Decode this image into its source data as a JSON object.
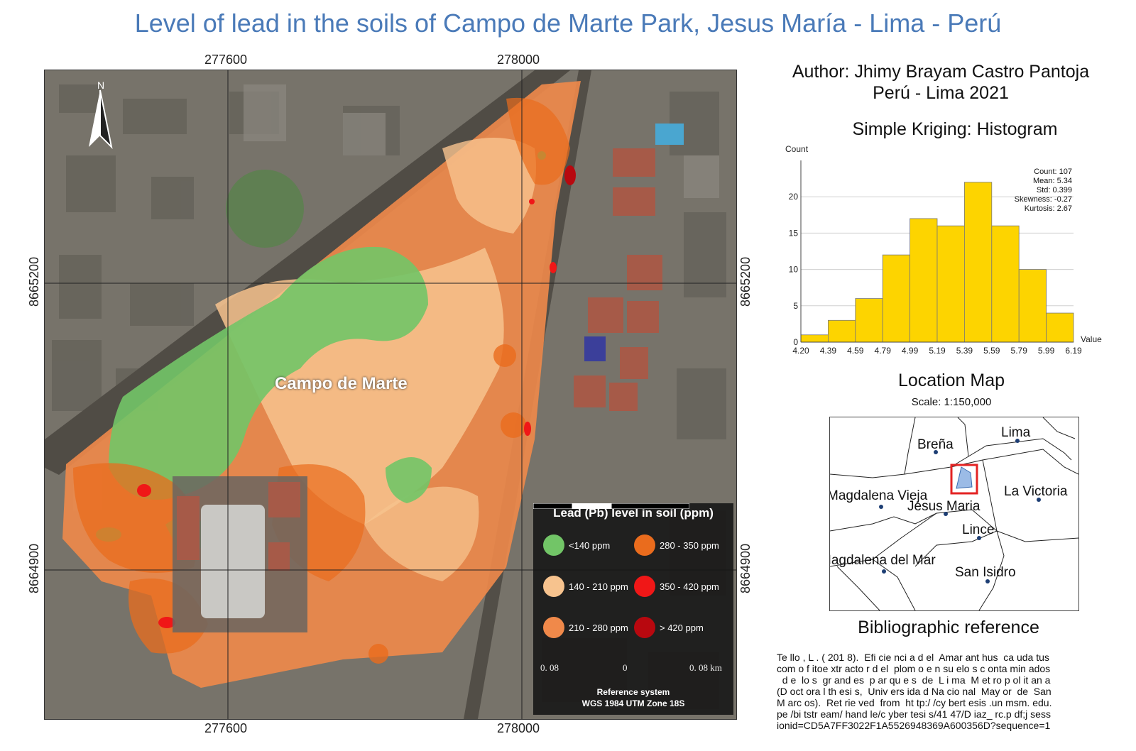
{
  "title": "Level of lead in the soils of Campo de Marte Park, Jesus María - Lima - Perú",
  "map": {
    "park_label": "Campo de Marte",
    "north_label": "N",
    "x_ticks": [
      "277600",
      "278000"
    ],
    "y_ticks": [
      "8665200",
      "8664900"
    ],
    "legend": {
      "title": "Lead (Pb) level in soil (ppm)",
      "items": [
        {
          "label": "<140 ppm",
          "color": "#72c567"
        },
        {
          "label": "280 - 350 ppm",
          "color": "#ea6c1d"
        },
        {
          "label": "140 - 210 ppm",
          "color": "#f7c38e"
        },
        {
          "label": "350 - 420 ppm",
          "color": "#f01717"
        },
        {
          "label": "210 - 280 ppm",
          "color": "#f0894a"
        },
        {
          "label": "> 420 ppm",
          "color": "#b8080f"
        }
      ],
      "scale_left": "0. 08",
      "scale_mid": "0",
      "scale_right": "0. 08",
      "scale_unit": "km",
      "reference_system_line1": "Reference system",
      "reference_system_line2": "WGS 1984 UTM Zone 18S"
    }
  },
  "author": {
    "line1": "Author: Jhimy Brayam Castro Pantoja",
    "line2": "Perú - Lima 2021"
  },
  "histogram": {
    "title": "Simple Kriging: Histogram",
    "ylabel": "Count",
    "xlabel": "Value",
    "stats": [
      "Count: 107",
      "Mean: 5.34",
      "Std: 0.399",
      "Skewness: -0.27",
      "Kurtosis: 2.67"
    ]
  },
  "chart_data": {
    "type": "bar",
    "title": "Simple Kriging: Histogram",
    "xlabel": "Value",
    "ylabel": "Count",
    "bin_edges": [
      4.2,
      4.39,
      4.59,
      4.79,
      4.99,
      5.19,
      5.39,
      5.59,
      5.79,
      5.99,
      6.19
    ],
    "x_tick_labels": [
      "4.20",
      "4.39",
      "4.59",
      "4.79",
      "4.99",
      "5.19",
      "5.39",
      "5.59",
      "5.79",
      "5.99",
      "6.19"
    ],
    "values": [
      1,
      3,
      6,
      12,
      17,
      16,
      22,
      16,
      10,
      4
    ],
    "y_ticks": [
      0,
      5,
      10,
      15,
      20
    ],
    "ylim": [
      0,
      25
    ],
    "bar_color": "#fdd400",
    "grid": true
  },
  "location_map": {
    "title": "Location Map",
    "scale": "Scale: 1:150,000",
    "districts": [
      "Breña",
      "Lima",
      "Magdalena Vieja",
      "La Victoria",
      "Jesus Maria",
      "Lince",
      "Magdalena del Mar",
      "San Isidro"
    ]
  },
  "bibliography": {
    "title": "Bibliographic reference",
    "lines": [
      "Te llo , L . ( 201 8).  Efi cie nci a d el  Amar ant hus  ca uda tus",
      "com o f itoe xtr acto r d el  plom o e n su elo s c onta min ados",
      "  d e  lo s  gr and es  p ar qu e s  de  L i ma  M et ro p ol it an a",
      "(D oct ora l th esi s,  Univ ers ida d Na cio nal  May or  de  San",
      "M arc os).  Ret rie ved  from  ht tp:/ /cy bert esis .un msm. edu.",
      "pe /bi tstr eam/ hand le/c yber tesi s/41 47/D iaz_ rc.p df;j sess",
      "ionid=CD5A7FF3022F1A5526948369A600356D?sequence=1"
    ]
  }
}
